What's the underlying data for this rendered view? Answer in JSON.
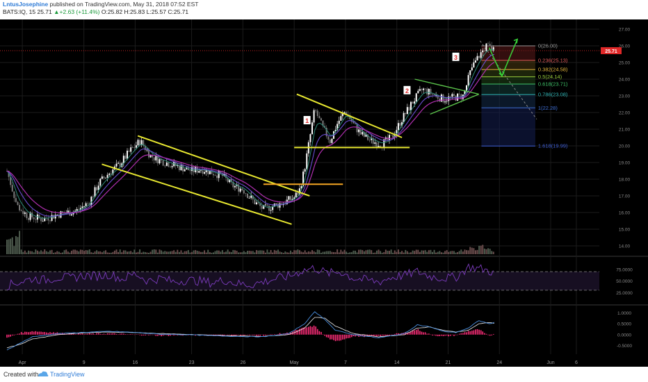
{
  "header": {
    "author": "LntusJosephine",
    "published_text": " published on TradingView.com, May 31, 2018 07:52 EST",
    "symbol": "BATS:IQ, 15",
    "last": "25.71",
    "change": "+2.63 (+11.4%)",
    "ohlc": "O:25.82 H:25.83 L:25.57 C:25.71"
  },
  "footer": {
    "created_with": "Created with",
    "brand": "TradingView"
  },
  "colors": {
    "background": "#000000",
    "grid": "#1c1c1c",
    "candle_up": "#ffffff",
    "candle_down": "#7a7a7a",
    "trendline": "#e8e830",
    "resistance": "#f5a623",
    "triangle_green": "#5ac24a",
    "arrow": "#39d439",
    "ema_fast": "#2f8c7a",
    "ema_mid": "#6a4cd0",
    "ema_slow": "#b02fb0",
    "rsi": "#7d3cbf",
    "macd_line": "#4a90e2",
    "signal_line": "#f2f2f2",
    "histogram": "#ff2e7a",
    "price_tag": "#e02828",
    "annotation_box": "#ffffff",
    "annotation_text": "#e02828"
  },
  "chart_data": [
    {
      "type": "candlestick",
      "title": "BATS:IQ, 15",
      "x_ticks": [
        "Apr",
        "9",
        "16",
        "23",
        "26",
        "May",
        "7",
        "14",
        "21",
        "24",
        "Jun",
        "6"
      ],
      "price_ticks": [
        "27.00",
        "26.00",
        "25.00",
        "24.00",
        "23.00",
        "22.00",
        "21.00",
        "20.00",
        "19.00",
        "18.00",
        "17.00",
        "16.00",
        "15.00",
        "14.00"
      ],
      "ylim": [
        13.5,
        27.5
      ],
      "last_price": "25.71",
      "fibonacci": [
        {
          "label": "0(26.00)",
          "level": 26.0
        },
        {
          "label": "0.236(25.13)",
          "level": 25.13
        },
        {
          "label": "0.382(24.58)",
          "level": 24.58
        },
        {
          "label": "0.5(24.14)",
          "level": 24.14
        },
        {
          "label": "0.618(23.71)",
          "level": 23.71
        },
        {
          "label": "0.786(23.08)",
          "level": 23.08
        },
        {
          "label": "1(22.28)",
          "level": 22.28
        },
        {
          "label": "1.618(19.99)",
          "level": 19.99
        }
      ],
      "annotations": [
        "1",
        "2",
        "3"
      ],
      "price_path": [
        [
          0,
          18.5
        ],
        [
          4,
          16.4
        ],
        [
          8,
          15.8
        ],
        [
          14,
          15.6
        ],
        [
          20,
          15.9
        ],
        [
          27,
          16.1
        ],
        [
          32,
          16.6
        ],
        [
          36,
          17.8
        ],
        [
          40,
          18.4
        ],
        [
          44,
          18.9
        ],
        [
          48,
          19.7
        ],
        [
          52,
          20.3
        ],
        [
          56,
          19.4
        ],
        [
          60,
          19.1
        ],
        [
          64,
          18.9
        ],
        [
          68,
          18.7
        ],
        [
          72,
          18.5
        ],
        [
          76,
          18.6
        ],
        [
          80,
          18.4
        ],
        [
          84,
          18.2
        ],
        [
          88,
          17.6
        ],
        [
          92,
          17.4
        ],
        [
          96,
          16.7
        ],
        [
          100,
          16.2
        ],
        [
          104,
          16.4
        ],
        [
          108,
          16.6
        ],
        [
          112,
          16.9
        ],
        [
          114,
          17.3
        ],
        [
          116,
          18.6
        ],
        [
          118,
          20.4
        ],
        [
          120,
          22.2
        ],
        [
          123,
          21.1
        ],
        [
          126,
          20.3
        ],
        [
          129,
          21.4
        ],
        [
          132,
          22.1
        ],
        [
          135,
          21.3
        ],
        [
          138,
          20.7
        ],
        [
          142,
          20.3
        ],
        [
          146,
          20.1
        ],
        [
          150,
          20.5
        ],
        [
          154,
          21.6
        ],
        [
          158,
          22.6
        ],
        [
          162,
          23.4
        ],
        [
          166,
          23.1
        ],
        [
          170,
          22.8
        ],
        [
          174,
          22.9
        ],
        [
          178,
          23.0
        ],
        [
          181,
          24.6
        ],
        [
          184,
          25.4
        ],
        [
          187,
          26.0
        ],
        [
          190,
          25.7
        ]
      ]
    },
    {
      "type": "line",
      "title": "RSI",
      "y_ticks": [
        "75.0000",
        "50.0000",
        "25.0000"
      ],
      "ylim": [
        0,
        100
      ],
      "bands": [
        70,
        30
      ],
      "values": [
        [
          0,
          40
        ],
        [
          5,
          48
        ],
        [
          10,
          55
        ],
        [
          15,
          52
        ],
        [
          20,
          58
        ],
        [
          25,
          56
        ],
        [
          30,
          62
        ],
        [
          35,
          60
        ],
        [
          40,
          64
        ],
        [
          45,
          54
        ],
        [
          50,
          66
        ],
        [
          55,
          50
        ],
        [
          60,
          56
        ],
        [
          65,
          48
        ],
        [
          70,
          52
        ],
        [
          75,
          50
        ],
        [
          80,
          46
        ],
        [
          85,
          52
        ],
        [
          90,
          44
        ],
        [
          95,
          42
        ],
        [
          100,
          48
        ],
        [
          105,
          55
        ],
        [
          110,
          60
        ],
        [
          115,
          72
        ],
        [
          120,
          78
        ],
        [
          125,
          66
        ],
        [
          130,
          70
        ],
        [
          135,
          56
        ],
        [
          140,
          52
        ],
        [
          145,
          48
        ],
        [
          150,
          58
        ],
        [
          155,
          62
        ],
        [
          160,
          70
        ],
        [
          165,
          60
        ],
        [
          170,
          56
        ],
        [
          175,
          58
        ],
        [
          180,
          80
        ],
        [
          185,
          76
        ],
        [
          190,
          68
        ]
      ]
    },
    {
      "type": "line",
      "title": "MACD",
      "y_ticks": [
        "1.0000",
        "0.5000",
        "0.0000",
        "-0.5000"
      ],
      "ylim": [
        -0.9,
        1.3
      ],
      "macd": [
        [
          0,
          -0.7
        ],
        [
          5,
          -0.4
        ],
        [
          10,
          -0.1
        ],
        [
          20,
          0.05
        ],
        [
          30,
          0.1
        ],
        [
          40,
          0.15
        ],
        [
          50,
          0.1
        ],
        [
          60,
          0.02
        ],
        [
          70,
          0.0
        ],
        [
          80,
          -0.05
        ],
        [
          90,
          -0.08
        ],
        [
          100,
          -0.1
        ],
        [
          110,
          0.05
        ],
        [
          116,
          0.5
        ],
        [
          120,
          1.05
        ],
        [
          124,
          0.7
        ],
        [
          128,
          0.2
        ],
        [
          135,
          0.0
        ],
        [
          145,
          -0.15
        ],
        [
          155,
          0.05
        ],
        [
          160,
          0.45
        ],
        [
          165,
          0.35
        ],
        [
          170,
          0.15
        ],
        [
          175,
          0.1
        ],
        [
          180,
          0.3
        ],
        [
          184,
          0.65
        ],
        [
          188,
          0.5
        ],
        [
          190,
          0.55
        ]
      ],
      "signal": [
        [
          0,
          -0.6
        ],
        [
          5,
          -0.45
        ],
        [
          10,
          -0.2
        ],
        [
          20,
          0.0
        ],
        [
          30,
          0.08
        ],
        [
          40,
          0.12
        ],
        [
          50,
          0.1
        ],
        [
          60,
          0.05
        ],
        [
          70,
          0.01
        ],
        [
          80,
          -0.03
        ],
        [
          90,
          -0.06
        ],
        [
          100,
          -0.08
        ],
        [
          110,
          0.0
        ],
        [
          116,
          0.3
        ],
        [
          120,
          0.8
        ],
        [
          124,
          0.75
        ],
        [
          128,
          0.4
        ],
        [
          135,
          0.05
        ],
        [
          145,
          -0.1
        ],
        [
          155,
          0.0
        ],
        [
          160,
          0.3
        ],
        [
          165,
          0.35
        ],
        [
          170,
          0.2
        ],
        [
          175,
          0.12
        ],
        [
          180,
          0.2
        ],
        [
          184,
          0.5
        ],
        [
          188,
          0.55
        ],
        [
          190,
          0.52
        ]
      ]
    }
  ]
}
